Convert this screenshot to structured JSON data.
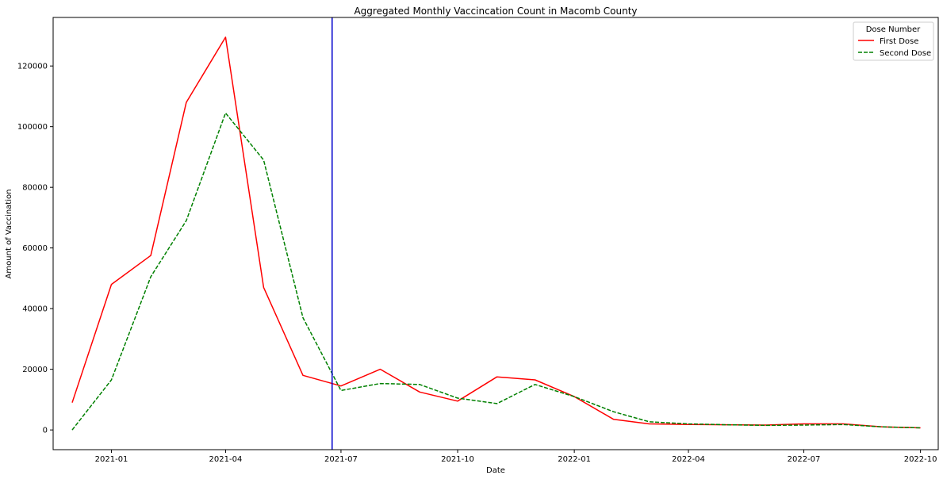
{
  "chart_data": {
    "type": "line",
    "title": "Aggregated Monthly Vaccincation Count in Macomb County",
    "xlabel": "Date",
    "ylabel": "Amount of Vaccination",
    "x": [
      "2020-12-01",
      "2021-01-01",
      "2021-02-01",
      "2021-03-01",
      "2021-04-01",
      "2021-05-01",
      "2021-06-01",
      "2021-07-01",
      "2021-08-01",
      "2021-09-01",
      "2021-10-01",
      "2021-11-01",
      "2021-12-01",
      "2022-01-01",
      "2022-02-01",
      "2022-03-01",
      "2022-04-01",
      "2022-05-01",
      "2022-06-01",
      "2022-07-01",
      "2022-08-01",
      "2022-09-01",
      "2022-10-01"
    ],
    "series": [
      {
        "name": "First Dose",
        "color": "#ff0000",
        "style": "solid",
        "values": [
          9000,
          48000,
          57500,
          108000,
          129500,
          47000,
          18000,
          14500,
          20000,
          12500,
          9500,
          17500,
          16500,
          11000,
          3500,
          2000,
          1800,
          1700,
          1600,
          2000,
          2000,
          1000,
          700
        ]
      },
      {
        "name": "Second Dose",
        "color": "#008000",
        "style": "dashed",
        "values": [
          0,
          16500,
          50500,
          69000,
          104500,
          89000,
          37000,
          13000,
          15300,
          15000,
          10500,
          8700,
          15000,
          11000,
          6000,
          2700,
          2000,
          1700,
          1500,
          1600,
          1800,
          1000,
          700
        ]
      }
    ],
    "xticks": [
      "2021-01",
      "2021-04",
      "2021-07",
      "2021-10",
      "2022-01",
      "2022-04",
      "2022-07",
      "2022-10"
    ],
    "yticks": [
      0,
      20000,
      40000,
      60000,
      80000,
      100000,
      120000
    ],
    "xlim": [
      "2020-11-16",
      "2022-10-15"
    ],
    "ylim": [
      -6500,
      136000
    ],
    "vline": {
      "x": "2021-06-24",
      "color": "#0000cc"
    },
    "legend": {
      "title": "Dose Number",
      "placement": "top-right"
    },
    "grid": false
  }
}
